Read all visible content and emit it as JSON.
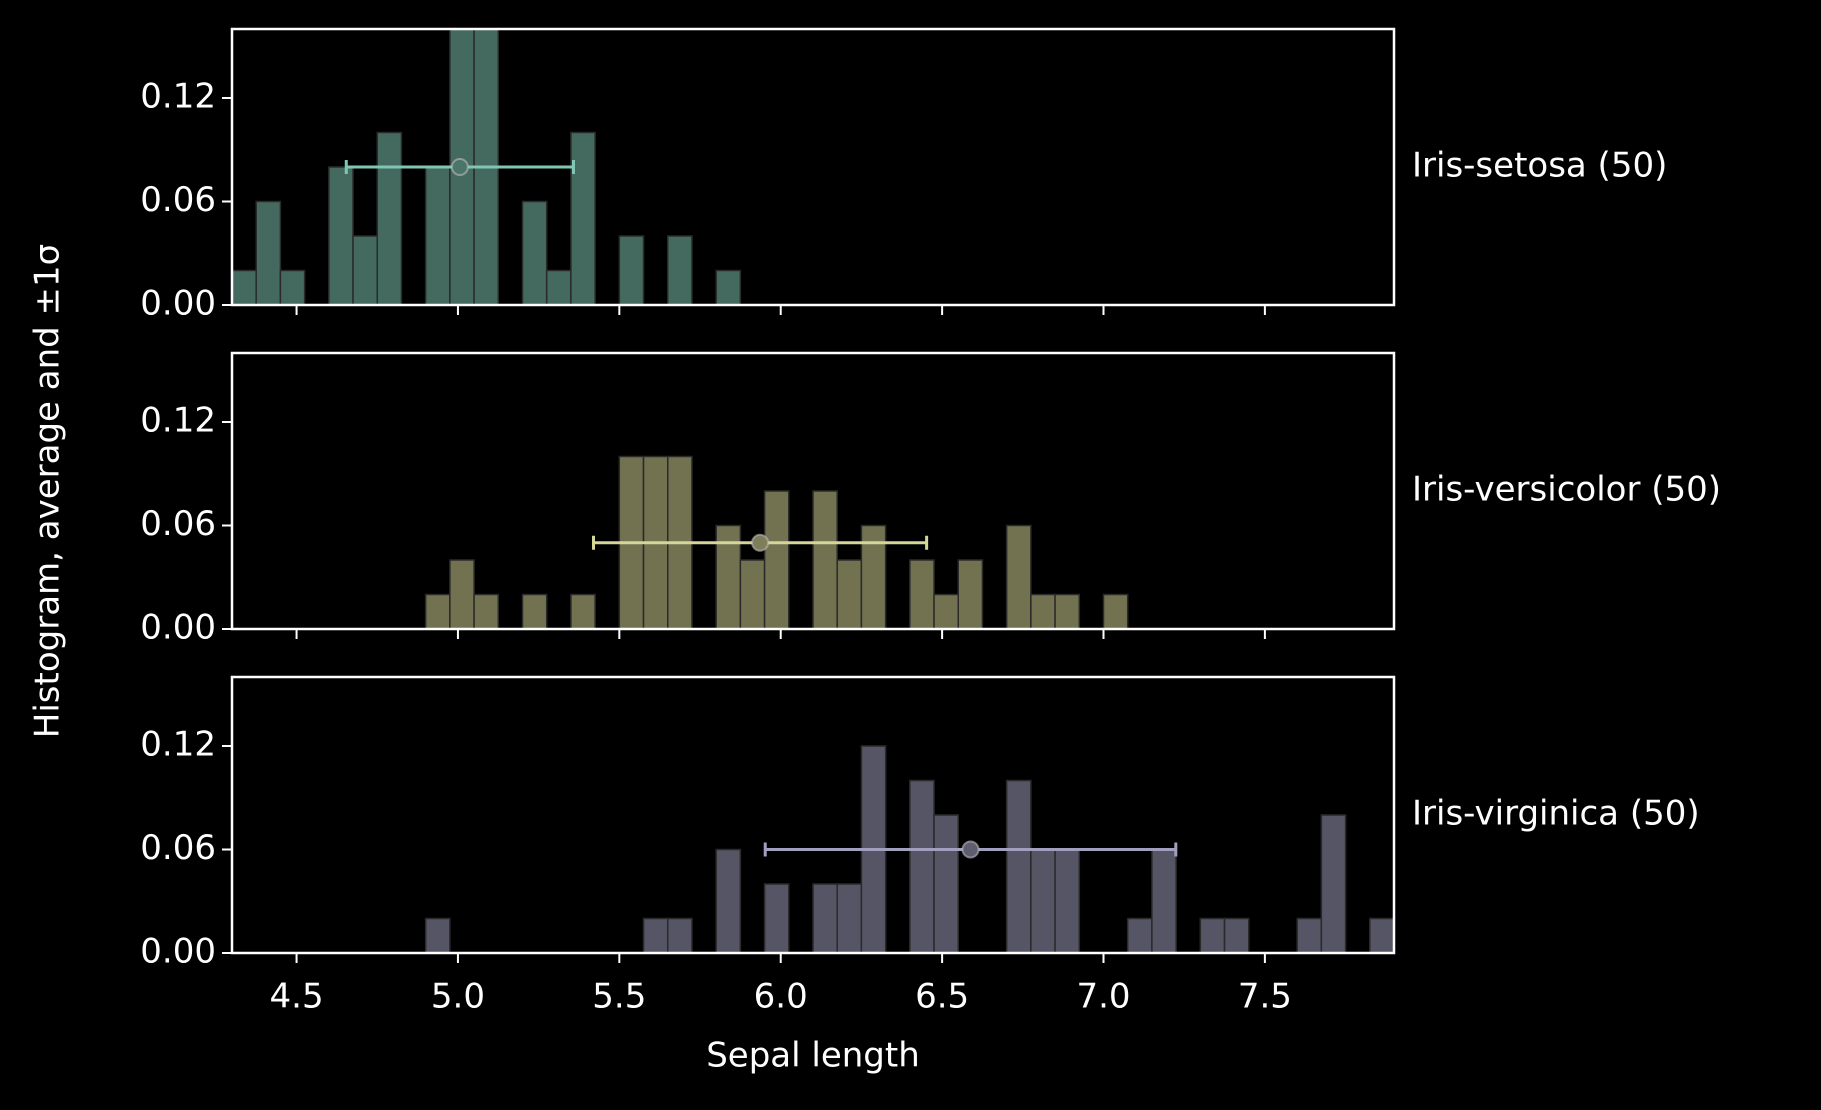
{
  "chart_data": {
    "type": "histogram",
    "xlabel": "Sepal length",
    "ylabel": "Histogram, average and ±1σ",
    "bins": [
      4.3,
      4.375,
      4.45,
      4.525,
      4.6,
      4.675,
      4.75,
      4.825,
      4.9,
      4.975,
      5.05,
      5.125,
      5.2,
      5.275,
      5.35,
      5.425,
      5.5,
      5.575,
      5.65,
      5.725,
      5.8,
      5.875,
      5.95,
      6.025,
      6.1,
      6.175,
      6.25,
      6.325,
      6.4,
      6.475,
      6.55,
      6.625,
      6.7,
      6.775,
      6.85,
      6.925,
      7.0,
      7.075,
      7.15,
      7.225,
      7.3,
      7.375,
      7.45,
      7.525,
      7.6,
      7.675,
      7.75,
      7.825,
      7.9
    ],
    "xlim": [
      4.3,
      7.9
    ],
    "xticks": [
      4.5,
      {
        "value": 5,
        "label": "5.0"
      },
      5.5,
      {
        "value": 6,
        "label": "6.0"
      },
      6.5,
      {
        "value": 7,
        "label": "7.0"
      },
      7.5
    ],
    "ylim": [
      0,
      0.16
    ],
    "yticks": [
      {
        "value": 0,
        "label": "0.00"
      },
      0.06,
      0.12
    ],
    "series": [
      {
        "name": "Iris-setosa (50)",
        "color": "#4b7569",
        "mean": 5.006,
        "std": 0.352,
        "values": [
          0.02,
          0.06,
          0.02,
          0,
          0.08,
          0.04,
          0.1,
          0,
          0.08,
          0.16,
          0.16,
          0,
          0.06,
          0.02,
          0.1,
          0,
          0.04,
          0,
          0.04,
          0,
          0.02,
          0,
          0,
          0,
          0,
          0,
          0,
          0,
          0,
          0,
          0,
          0,
          0,
          0,
          0,
          0,
          0,
          0,
          0,
          0,
          0,
          0,
          0,
          0,
          0,
          0,
          0,
          0
        ]
      },
      {
        "name": "Iris-versicolor (50)",
        "color": "#7e7e5a",
        "mean": 5.936,
        "std": 0.516,
        "values": [
          0,
          0,
          0,
          0,
          0,
          0,
          0,
          0,
          0.02,
          0.04,
          0.02,
          0,
          0.02,
          0,
          0.02,
          0,
          0.1,
          0.1,
          0.1,
          0,
          0.06,
          0.04,
          0.08,
          0,
          0.08,
          0.04,
          0.06,
          0,
          0.04,
          0.02,
          0.04,
          0,
          0.06,
          0.02,
          0.02,
          0,
          0.02,
          0,
          0,
          0,
          0,
          0,
          0,
          0,
          0,
          0,
          0,
          0
        ]
      },
      {
        "name": "Iris-virginica (50)",
        "color": "#5e5e70",
        "mean": 6.588,
        "std": 0.636,
        "values": [
          0,
          0,
          0,
          0,
          0,
          0,
          0,
          0,
          0.02,
          0,
          0,
          0,
          0,
          0,
          0,
          0,
          0,
          0.02,
          0.02,
          0,
          0.06,
          0,
          0.04,
          0,
          0.04,
          0.04,
          0.12,
          0,
          0.1,
          0.08,
          0,
          0,
          0.1,
          0.06,
          0.06,
          0,
          0,
          0.02,
          0.06,
          0,
          0.02,
          0.02,
          0,
          0,
          0.02,
          0.08,
          0,
          0.02
        ]
      }
    ]
  }
}
